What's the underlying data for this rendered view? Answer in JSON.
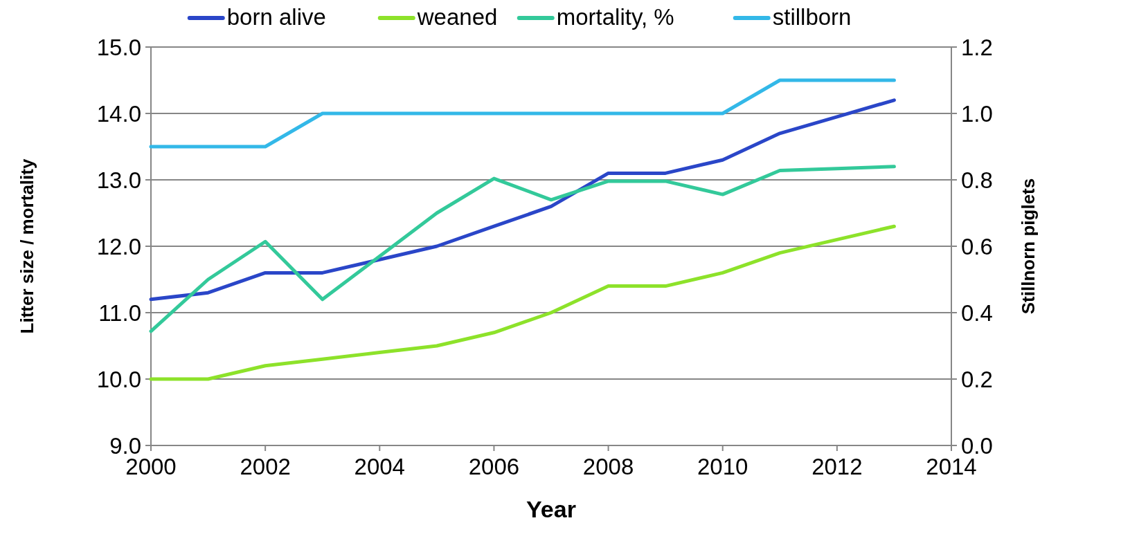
{
  "chart_data": {
    "type": "line",
    "xlabel": "Year",
    "ylabel": "Litter size / mortality",
    "y2label": "Stillnorn piglets",
    "x": [
      2000,
      2001,
      2002,
      2003,
      2004,
      2005,
      2006,
      2007,
      2008,
      2009,
      2010,
      2011,
      2012,
      2013
    ],
    "series": [
      {
        "name": "born alive",
        "color": "#2a46c8",
        "values": [
          11.2,
          11.3,
          11.6,
          11.6,
          11.8,
          12.0,
          12.3,
          12.6,
          13.1,
          13.1,
          13.3,
          13.7,
          13.95,
          14.2
        ]
      },
      {
        "name": "weaned",
        "color": "#8de22a",
        "values": [
          10.0,
          10.0,
          10.2,
          10.3,
          10.4,
          10.5,
          10.7,
          11.0,
          11.4,
          11.4,
          11.6,
          11.9,
          12.1,
          12.3
        ]
      },
      {
        "name": "mortality, %",
        "color": "#33c99a",
        "values": [
          10.72,
          11.5,
          12.07,
          11.2,
          11.85,
          12.5,
          13.02,
          12.7,
          12.98,
          12.98,
          12.78,
          13.14,
          13.17,
          13.2
        ]
      },
      {
        "name": "stillborn",
        "color": "#33b8e8",
        "axis": "y2",
        "values": [
          0.9,
          0.9,
          0.9,
          1.0,
          1.0,
          1.0,
          1.0,
          1.0,
          1.0,
          1.0,
          1.0,
          1.1,
          1.1,
          1.1
        ]
      }
    ],
    "xlim": [
      2000,
      2014
    ],
    "xticks": [
      2000,
      2002,
      2004,
      2006,
      2008,
      2010,
      2012,
      2014
    ],
    "ylim": [
      9,
      15
    ],
    "yticks": [
      {
        "value": 9,
        "label": "9.0"
      },
      {
        "value": 10,
        "label": "10.0"
      },
      {
        "value": 11,
        "label": "11.0"
      },
      {
        "value": 12,
        "label": "12.0"
      },
      {
        "value": 13,
        "label": "13.0"
      },
      {
        "value": 14,
        "label": "14.0"
      },
      {
        "value": 15,
        "label": "15.0"
      }
    ],
    "y2lim": [
      0,
      1.2
    ],
    "y2ticks": [
      {
        "value": 0,
        "label": "0.0"
      },
      {
        "value": 0.2,
        "label": "0.2"
      },
      {
        "value": 0.4,
        "label": "0.4"
      },
      {
        "value": 0.6,
        "label": "0.6"
      },
      {
        "value": 0.8,
        "label": "0.8"
      },
      {
        "value": 1.0,
        "label": "1.0"
      },
      {
        "value": 1.2,
        "label": "1.2"
      }
    ],
    "grid": "y",
    "legend": "top",
    "line_style": "solid",
    "marker": "none"
  }
}
